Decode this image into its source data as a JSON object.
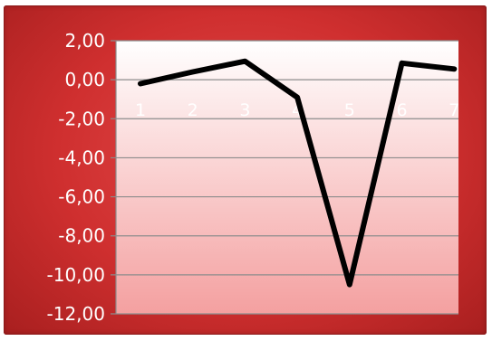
{
  "chart_data": {
    "type": "line",
    "x": [
      "1",
      "2",
      "3",
      "4",
      "5",
      "6",
      "7"
    ],
    "series": [
      {
        "values": [
          -0.2,
          0.4,
          0.95,
          -0.9,
          -10.5,
          0.85,
          0.55
        ]
      }
    ],
    "ylim": [
      -12,
      2
    ],
    "yticks": [
      2,
      0,
      -2,
      -4,
      -6,
      -8,
      -10,
      -12
    ],
    "ytick_labels": [
      "2,00",
      "0,00",
      "-2,00",
      "-4,00",
      "-6,00",
      "-8,00",
      "-10,00",
      "-12,00"
    ],
    "grid": true,
    "legend": "none",
    "colors": {
      "frame": "#cf2f2f",
      "plot_top": "#ffffff",
      "plot_bottom": "#f4a0a0",
      "line": "#000000",
      "grid": "#8c8c8c",
      "text": "#ffffff"
    }
  }
}
